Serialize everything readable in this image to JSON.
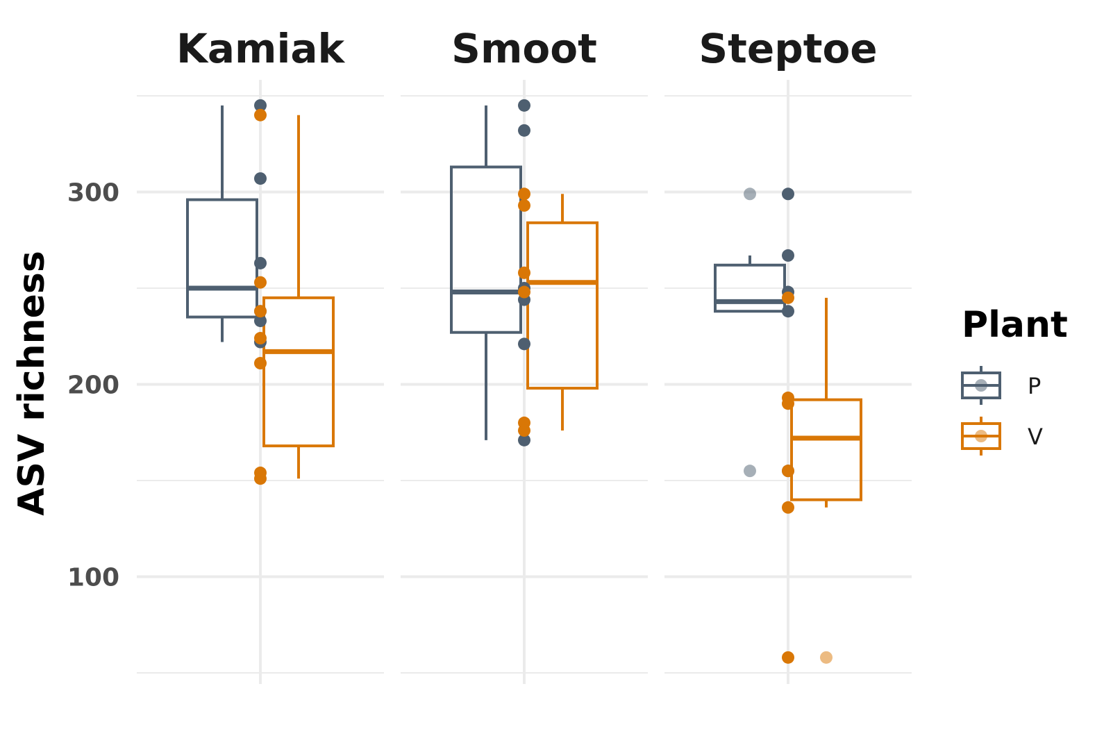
{
  "chart_data": {
    "type": "boxplot",
    "ylabel": "ASV richness",
    "yticks": [
      100,
      200,
      300
    ],
    "ylim": [
      50,
      350
    ],
    "grid": true,
    "facets": [
      {
        "name": "Kamiak",
        "boxes": [
          {
            "group": "P",
            "min": 222,
            "q1": 235,
            "median": 250,
            "q3": 296,
            "max": 345
          },
          {
            "group": "V",
            "min": 151,
            "q1": 168,
            "median": 217,
            "q3": 245,
            "max": 340
          }
        ],
        "points": [
          {
            "group": "P",
            "pos": 0,
            "value": 345
          },
          {
            "group": "P",
            "pos": 0,
            "value": 307
          },
          {
            "group": "P",
            "pos": 0,
            "value": 263
          },
          {
            "group": "P",
            "pos": 0,
            "value": 238
          },
          {
            "group": "P",
            "pos": 0,
            "value": 233
          },
          {
            "group": "P",
            "pos": 0,
            "value": 222
          },
          {
            "group": "V",
            "pos": 0,
            "value": 340
          },
          {
            "group": "V",
            "pos": 0,
            "value": 253
          },
          {
            "group": "V",
            "pos": 0,
            "value": 238
          },
          {
            "group": "V",
            "pos": 0,
            "value": 224
          },
          {
            "group": "V",
            "pos": 0,
            "value": 211
          },
          {
            "group": "V",
            "pos": 0,
            "value": 154
          },
          {
            "group": "V",
            "pos": 0,
            "value": 151
          }
        ]
      },
      {
        "name": "Smoot",
        "boxes": [
          {
            "group": "P",
            "min": 171,
            "q1": 227,
            "median": 248,
            "q3": 313,
            "max": 345
          },
          {
            "group": "V",
            "min": 176,
            "q1": 198,
            "median": 253,
            "q3": 284,
            "max": 299
          }
        ],
        "points": [
          {
            "group": "P",
            "pos": 0,
            "value": 345
          },
          {
            "group": "P",
            "pos": 0,
            "value": 332
          },
          {
            "group": "P",
            "pos": 0,
            "value": 250
          },
          {
            "group": "P",
            "pos": 0,
            "value": 244
          },
          {
            "group": "P",
            "pos": 0,
            "value": 221
          },
          {
            "group": "P",
            "pos": 0,
            "value": 171
          },
          {
            "group": "V",
            "pos": 0,
            "value": 299
          },
          {
            "group": "V",
            "pos": 0,
            "value": 293
          },
          {
            "group": "V",
            "pos": 0,
            "value": 258
          },
          {
            "group": "V",
            "pos": 0,
            "value": 248
          },
          {
            "group": "V",
            "pos": 0,
            "value": 180
          },
          {
            "group": "V",
            "pos": 0,
            "value": 176
          }
        ]
      },
      {
        "name": "Steptoe",
        "boxes": [
          {
            "group": "P",
            "min": 238,
            "q1": 238,
            "median": 243,
            "q3": 262,
            "max": 267
          },
          {
            "group": "V",
            "min": 136,
            "q1": 140,
            "median": 172,
            "q3": 192,
            "max": 245
          }
        ],
        "points": [
          {
            "group": "P",
            "pos": -1,
            "value": 299,
            "faded": true
          },
          {
            "group": "P",
            "pos": -1,
            "value": 155,
            "faded": true
          },
          {
            "group": "P",
            "pos": 0,
            "value": 299
          },
          {
            "group": "P",
            "pos": 0,
            "value": 267
          },
          {
            "group": "P",
            "pos": 0,
            "value": 248
          },
          {
            "group": "P",
            "pos": 0,
            "value": 238
          },
          {
            "group": "P",
            "pos": 0,
            "value": 155
          },
          {
            "group": "V",
            "pos": 0,
            "value": 245
          },
          {
            "group": "V",
            "pos": 0,
            "value": 193
          },
          {
            "group": "V",
            "pos": 0,
            "value": 190
          },
          {
            "group": "V",
            "pos": 0,
            "value": 155
          },
          {
            "group": "V",
            "pos": 0,
            "value": 136
          },
          {
            "group": "V",
            "pos": 0,
            "value": 58
          },
          {
            "group": "V",
            "pos": 1,
            "value": 58,
            "faded": true
          }
        ]
      }
    ],
    "legend": {
      "title": "Plant",
      "placement": "right",
      "entries": [
        {
          "name": "P",
          "color": "#4e5f70"
        },
        {
          "name": "V",
          "color": "#d97706"
        }
      ]
    },
    "colors": {
      "P": "#4e5f70",
      "V": "#d97706",
      "grid": "#ebebeb"
    }
  }
}
